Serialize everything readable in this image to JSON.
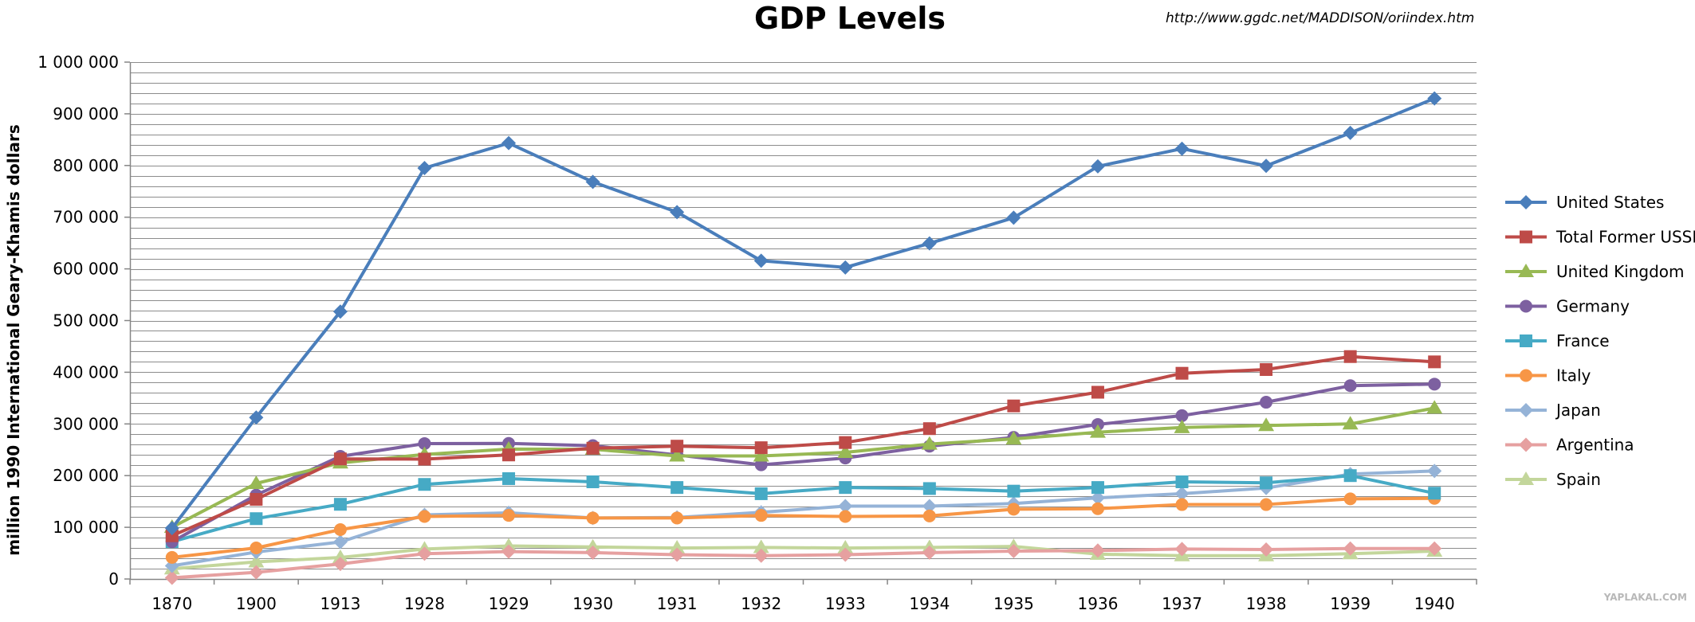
{
  "watermark": "YAPLAKAL.COM",
  "chart_data": {
    "type": "line",
    "title": "GDP Levels",
    "source": "http://www.ggdc.net/MADDISON/oriindex.htm",
    "xlabel": "",
    "ylabel": "million 1990 International Geary-Khamis dollars",
    "ylim": [
      0,
      1000000
    ],
    "ytick_step": 100000,
    "grid_step": 20000,
    "yticks": [
      "0",
      "100 000",
      "200 000",
      "300 000",
      "400 000",
      "500 000",
      "600 000",
      "700 000",
      "800 000",
      "900 000",
      "1 000 000"
    ],
    "categories": [
      "1870",
      "1900",
      "1913",
      "1928",
      "1929",
      "1930",
      "1931",
      "1932",
      "1933",
      "1934",
      "1935",
      "1936",
      "1937",
      "1938",
      "1939",
      "1940"
    ],
    "legend_position": "right",
    "series": [
      {
        "name": "United States",
        "color": "#4a7ebb",
        "marker": "diamond",
        "values": [
          98374,
          312499,
          517383,
          795000,
          843334,
          768314,
          709703,
          615686,
          602751,
          649316,
          698984,
          798322,
          832469,
          799357,
          862995,
          929737
        ]
      },
      {
        "name": "Total Former USSR",
        "color": "#be4b48",
        "marker": "square",
        "values": [
          83646,
          154049,
          232351,
          231886,
          240000,
          253000,
          257000,
          254000,
          264000,
          290903,
          334818,
          361306,
          398017,
          405220,
          430314,
          420091
        ]
      },
      {
        "name": "United Kingdom",
        "color": "#98b954",
        "marker": "triangle",
        "values": [
          100180,
          184861,
          224618,
          241000,
          251348,
          251076,
          238000,
          238000,
          245000,
          261000,
          271000,
          284000,
          293000,
          297000,
          300000,
          330638
        ]
      },
      {
        "name": "Germany",
        "color": "#7d60a0",
        "marker": "circle",
        "values": [
          72149,
          162335,
          237332,
          262000,
          262284,
          258000,
          240000,
          221000,
          234000,
          257000,
          274000,
          299000,
          316000,
          342000,
          374000,
          377000
        ]
      },
      {
        "name": "France",
        "color": "#46aac5",
        "marker": "square",
        "values": [
          72100,
          116747,
          144489,
          183000,
          194193,
          188000,
          177000,
          165000,
          177000,
          175000,
          170000,
          177000,
          188000,
          186000,
          200000,
          166000
        ]
      },
      {
        "name": "Italy",
        "color": "#f79646",
        "marker": "circle",
        "values": [
          41814,
          60114,
          95487,
          121000,
          123000,
          118000,
          118000,
          123000,
          121000,
          122000,
          135000,
          136000,
          144000,
          144000,
          155000,
          156000
        ]
      },
      {
        "name": "Japan",
        "color": "#95b3d7",
        "marker": "diamond",
        "values": [
          25393,
          52020,
          71653,
          124000,
          128116,
          118000,
          119000,
          129000,
          141000,
          141000,
          146000,
          157000,
          165000,
          176000,
          203000,
          209000
        ]
      },
      {
        "name": "Argentina",
        "color": "#e6a0a0",
        "marker": "diamond",
        "values": [
          2354,
          12932,
          29060,
          49000,
          53000,
          51000,
          47000,
          45000,
          47000,
          51000,
          54000,
          55000,
          58000,
          57000,
          59000,
          59000
        ]
      },
      {
        "name": "Spain",
        "color": "#c3d69b",
        "marker": "triangle",
        "values": [
          19556,
          33164,
          41653,
          58000,
          64000,
          62000,
          60000,
          61000,
          60000,
          61000,
          63000,
          48000,
          45000,
          45000,
          49000,
          54000
        ]
      }
    ]
  }
}
